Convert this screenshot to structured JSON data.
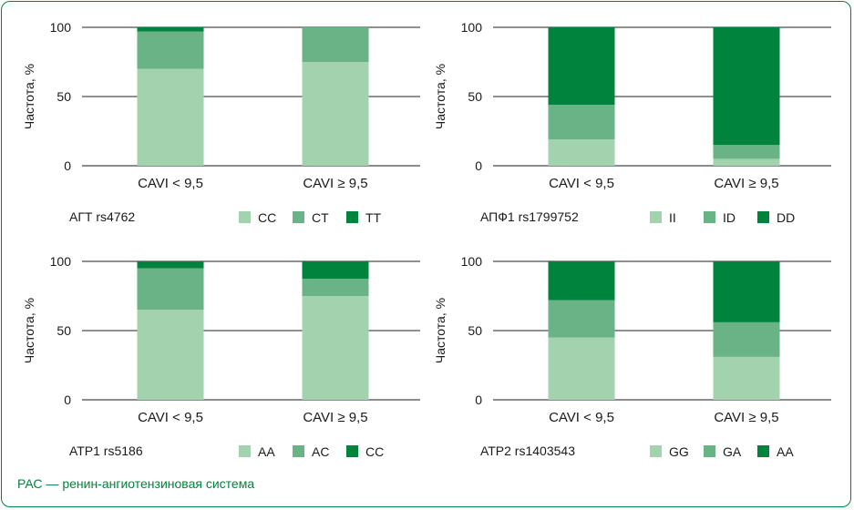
{
  "footnote": "РАС — ренин-ангиотензиновая система",
  "colors": {
    "light": "#a3d3ae",
    "medium": "#6ab386",
    "dark": "#00843d",
    "frame": "#00843d"
  },
  "chart_data": [
    {
      "type": "bar",
      "stacked": true,
      "title": "АГТ rs4762",
      "ylabel": "Частота, %",
      "ylim": [
        0,
        100
      ],
      "yticks": [
        0,
        50,
        100
      ],
      "categories": [
        "CAVI < 9,5",
        "CAVI ≥ 9,5"
      ],
      "series": [
        {
          "name": "CC",
          "color": "#a3d3ae",
          "values": [
            70,
            75
          ]
        },
        {
          "name": "CT",
          "color": "#6ab386",
          "values": [
            27,
            25
          ]
        },
        {
          "name": "TT",
          "color": "#00843d",
          "values": [
            3,
            0
          ]
        }
      ],
      "legend_position": "bottom"
    },
    {
      "type": "bar",
      "stacked": true,
      "title": "АПФ1 rs1799752",
      "ylabel": "Частота, %",
      "ylim": [
        0,
        100
      ],
      "yticks": [
        0,
        50,
        100
      ],
      "categories": [
        "CAVI < 9,5",
        "CAVI ≥ 9,5"
      ],
      "series": [
        {
          "name": "II",
          "color": "#a3d3ae",
          "values": [
            19,
            5
          ]
        },
        {
          "name": "ID",
          "color": "#6ab386",
          "values": [
            25,
            10
          ]
        },
        {
          "name": "DD",
          "color": "#00843d",
          "values": [
            56,
            85
          ]
        }
      ],
      "legend_position": "bottom"
    },
    {
      "type": "bar",
      "stacked": true,
      "title": "АТР1 rs5186",
      "ylabel": "Частота, %",
      "ylim": [
        0,
        100
      ],
      "yticks": [
        0,
        50,
        100
      ],
      "categories": [
        "CAVI < 9,5",
        "CAVI ≥ 9,5"
      ],
      "series": [
        {
          "name": "AA",
          "color": "#a3d3ae",
          "values": [
            65,
            75
          ]
        },
        {
          "name": "AC",
          "color": "#6ab386",
          "values": [
            30,
            12.5
          ]
        },
        {
          "name": "CC",
          "color": "#00843d",
          "values": [
            5,
            12.5
          ]
        }
      ],
      "legend_position": "bottom"
    },
    {
      "type": "bar",
      "stacked": true,
      "title": "АТР2 rs1403543",
      "ylabel": "Частота, %",
      "ylim": [
        0,
        100
      ],
      "yticks": [
        0,
        50,
        100
      ],
      "categories": [
        "CAVI < 9,5",
        "CAVI ≥ 9,5"
      ],
      "series": [
        {
          "name": "GG",
          "color": "#a3d3ae",
          "values": [
            45,
            31
          ]
        },
        {
          "name": "GA",
          "color": "#6ab386",
          "values": [
            27,
            25
          ]
        },
        {
          "name": "AA",
          "color": "#00843d",
          "values": [
            28,
            44
          ]
        }
      ],
      "legend_position": "bottom"
    }
  ]
}
